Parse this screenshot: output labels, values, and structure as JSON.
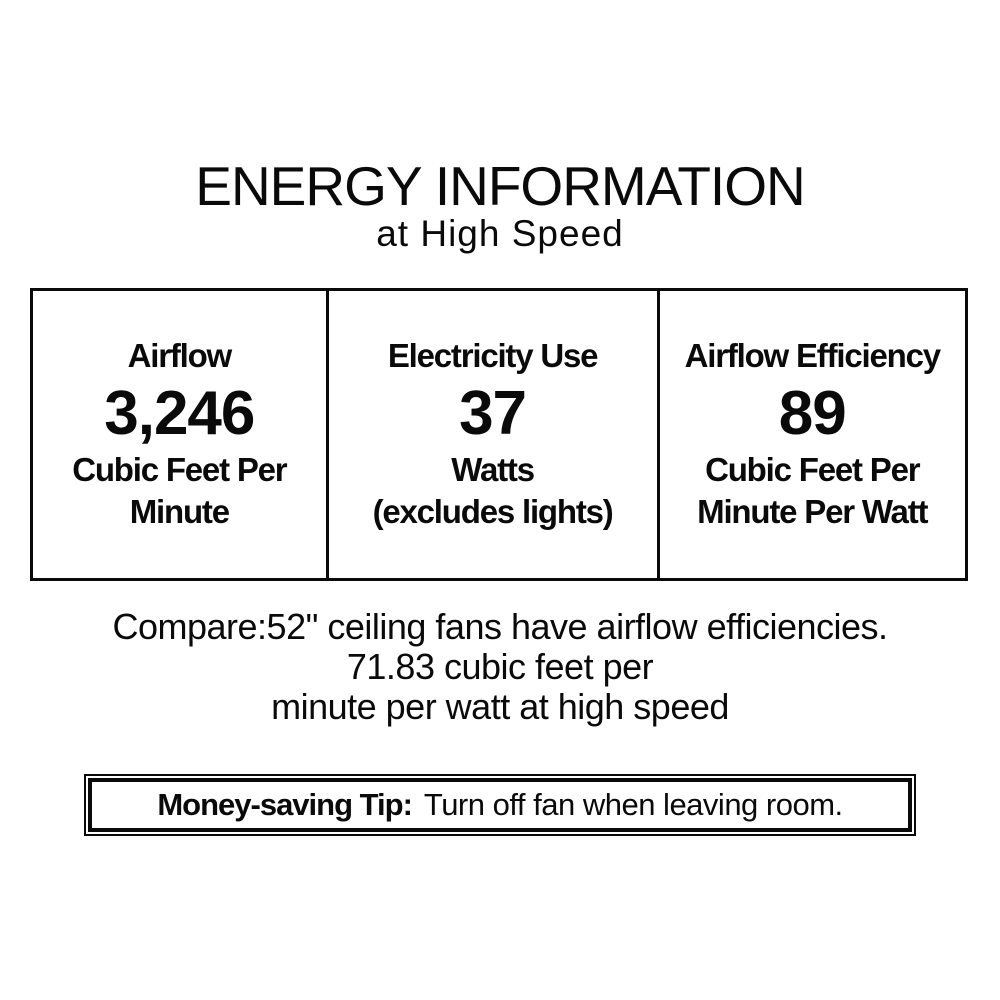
{
  "header": {
    "title": "ENERGY INFORMATION",
    "subtitle": "at High Speed"
  },
  "table": {
    "columns": [
      {
        "header": "Airflow",
        "value": "3,246",
        "unit_lines": [
          "Cubic Feet Per",
          "Minute"
        ]
      },
      {
        "header": "Electricity Use",
        "value": "37",
        "unit_lines": [
          "Watts",
          "(excludes lights)"
        ]
      },
      {
        "header": "Airflow Efficiency",
        "value": "89",
        "unit_lines": [
          "Cubic Feet Per",
          "Minute Per Watt"
        ]
      }
    ]
  },
  "compare": {
    "lines": [
      "Compare:52\" ceiling fans have airflow efficiencies.",
      "71.83 cubic feet per",
      "minute per watt at high speed"
    ]
  },
  "tip": {
    "label": "Money-saving Tip:",
    "text": "Turn off fan when leaving room."
  },
  "colors": {
    "text": "#0a0a0a",
    "border": "#0a0a0a",
    "background": "#ffffff"
  }
}
